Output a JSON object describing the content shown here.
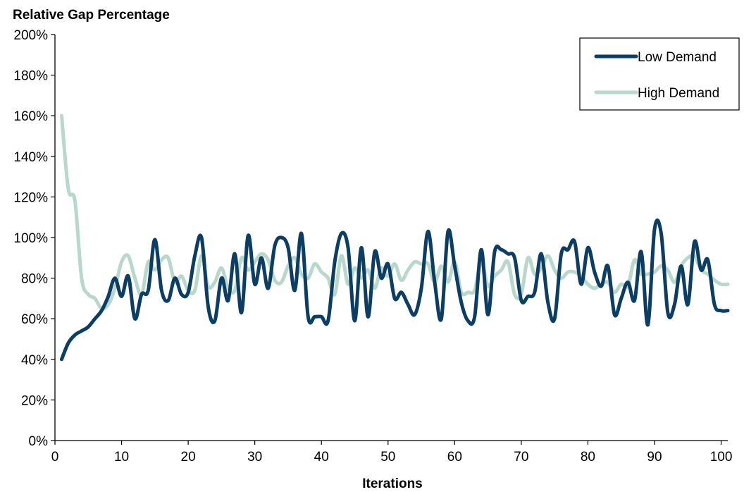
{
  "chart_data": {
    "type": "line",
    "ylabel": "Relative Gap Percentage",
    "xlabel": "Iterations",
    "xlim": [
      0,
      101
    ],
    "ylim": [
      0,
      200
    ],
    "x_ticks": [
      0,
      10,
      20,
      30,
      40,
      50,
      60,
      70,
      80,
      90,
      100
    ],
    "y_ticks": [
      0,
      20,
      40,
      60,
      80,
      100,
      120,
      140,
      160,
      180,
      200
    ],
    "y_tick_labels": [
      "0%",
      "20%",
      "40%",
      "60%",
      "80%",
      "100%",
      "120%",
      "140%",
      "160%",
      "180%",
      "200%"
    ],
    "x_tick_labels": [
      "0",
      "10",
      "20",
      "30",
      "40",
      "50",
      "60",
      "70",
      "80",
      "90",
      "100"
    ],
    "grid": false,
    "legend_position": "top-right",
    "x": [
      1,
      2,
      3,
      4,
      5,
      6,
      7,
      8,
      9,
      10,
      11,
      12,
      13,
      14,
      15,
      16,
      17,
      18,
      19,
      20,
      21,
      22,
      23,
      24,
      25,
      26,
      27,
      28,
      29,
      30,
      31,
      32,
      33,
      34,
      35,
      36,
      37,
      38,
      39,
      40,
      41,
      42,
      43,
      44,
      45,
      46,
      47,
      48,
      49,
      50,
      51,
      52,
      53,
      54,
      55,
      56,
      57,
      58,
      59,
      60,
      61,
      62,
      63,
      64,
      65,
      66,
      67,
      68,
      69,
      70,
      71,
      72,
      73,
      74,
      75,
      76,
      77,
      78,
      79,
      80,
      81,
      82,
      83,
      84,
      85,
      86,
      87,
      88,
      89,
      90,
      91,
      92,
      93,
      94,
      95,
      96,
      97,
      98,
      99,
      100,
      101
    ],
    "series": [
      {
        "name": "Low Demand",
        "color": "#0c3d63",
        "values": [
          40,
          48,
          52,
          54,
          56,
          60,
          64,
          71,
          80,
          71,
          81,
          60,
          72,
          74,
          99,
          74,
          69,
          80,
          72,
          73,
          91,
          100,
          66,
          59,
          80,
          69,
          92,
          63,
          101,
          77,
          90,
          75,
          96,
          100,
          95,
          74,
          102,
          61,
          61,
          61,
          59,
          88,
          102,
          95,
          59,
          95,
          61,
          93,
          80,
          87,
          70,
          73,
          67,
          62,
          75,
          103,
          78,
          60,
          103,
          86,
          68,
          59,
          61,
          94,
          62,
          93,
          94,
          92,
          90,
          69,
          71,
          73,
          92,
          68,
          60,
          92,
          94,
          98,
          77,
          95,
          83,
          76,
          86,
          62,
          70,
          78,
          69,
          93,
          57,
          104,
          102,
          63,
          67,
          86,
          67,
          98,
          84,
          89,
          67,
          64,
          64
        ],
        "stroke_width": 5
      },
      {
        "name": "High Demand",
        "color": "#b8d8cb",
        "values": [
          160,
          124,
          118,
          80,
          72,
          70,
          65,
          67,
          75,
          88,
          91,
          80,
          72,
          88,
          84,
          89,
          90,
          78,
          81,
          74,
          74,
          91,
          76,
          78,
          85,
          75,
          74,
          90,
          84,
          88,
          92,
          89,
          79,
          78,
          86,
          90,
          82,
          80,
          87,
          83,
          80,
          72,
          91,
          77,
          85,
          80,
          84,
          75,
          85,
          81,
          87,
          79,
          84,
          88,
          87,
          87,
          78,
          86,
          78,
          88,
          73,
          73,
          74,
          88,
          76,
          81,
          84,
          88,
          72,
          72,
          90,
          82,
          85,
          91,
          84,
          80,
          83,
          83,
          81,
          77,
          75,
          77,
          78,
          73,
          77,
          76,
          89,
          82,
          82,
          83,
          86,
          84,
          78,
          86,
          90,
          91,
          84,
          82,
          79,
          77,
          77
        ],
        "stroke_width": 5
      }
    ]
  }
}
